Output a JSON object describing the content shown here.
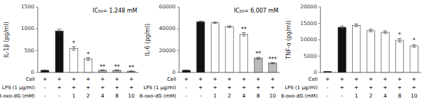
{
  "chart_data": [
    {
      "type": "bar",
      "y_label": "IL-1β (pg/ml)",
      "annotation": "IC₅₀= 1.248 mM",
      "ylim": [
        0,
        1500
      ],
      "yticks": [
        0,
        500,
        1000,
        1500
      ],
      "grid": false,
      "tick_labels": "y",
      "values": [
        50,
        950,
        550,
        310,
        50,
        50,
        30
      ],
      "errors": [
        5,
        40,
        40,
        30,
        8,
        8,
        5
      ],
      "colors": [
        "#111111",
        "#111111",
        "#ffffff",
        "#ffffff",
        "#bbbbbb",
        "#bbbbbb",
        "#bbbbbb"
      ],
      "significance": [
        null,
        null,
        "*",
        "*",
        "**",
        "**",
        "**"
      ],
      "significance_y": [
        null,
        null,
        600,
        355,
        68,
        68,
        45
      ],
      "table": [
        {
          "label": "Cell",
          "values": [
            "+",
            "+",
            "+",
            "+",
            "+",
            "+",
            "+"
          ]
        },
        {
          "label": "LPS (1 μg/ml)",
          "values": [
            "-",
            "+",
            "+",
            "+",
            "+",
            "+",
            "+"
          ]
        },
        {
          "label": "8-oxo-dG (mM)",
          "values": [
            "-",
            "-",
            "1",
            "2",
            "4",
            "8",
            "10"
          ]
        }
      ]
    },
    {
      "type": "bar",
      "y_label": "IL-6 (pg/ml)",
      "annotation": "IC₅₀= 6.007 mM",
      "ylim": [
        0,
        60000
      ],
      "yticks": [
        0,
        20000,
        40000,
        60000
      ],
      "grid": false,
      "tick_labels": "y",
      "values": [
        2000,
        46500,
        45500,
        42000,
        35000,
        13000,
        8500
      ],
      "errors": [
        200,
        600,
        600,
        700,
        1500,
        900,
        600
      ],
      "colors": [
        "#111111",
        "#111111",
        "#ffffff",
        "#ffffff",
        "#ffffff",
        "#bbbbbb",
        "#bbbbbb"
      ],
      "significance": [
        null,
        null,
        null,
        null,
        "**",
        "**",
        "***"
      ],
      "significance_y": [
        null,
        null,
        null,
        null,
        37000,
        14500,
        9500
      ],
      "table": [
        {
          "label": "Cell",
          "values": [
            "+",
            "+",
            "+",
            "+",
            "+",
            "+",
            "+"
          ]
        },
        {
          "label": "LPS (1 μg/ml)",
          "values": [
            "-",
            "+",
            "+",
            "+",
            "+",
            "+",
            "+"
          ]
        },
        {
          "label": "8-oxo-dG (mM)",
          "values": [
            "-",
            "-",
            "1",
            "2",
            "4",
            "8",
            "10"
          ]
        }
      ]
    },
    {
      "type": "bar",
      "y_label": "TNF-α (pg/ml)",
      "ylim": [
        0,
        20000
      ],
      "yticks": [
        0,
        5000,
        10000,
        15000,
        20000
      ],
      "grid": false,
      "tick_labels": "y",
      "values": [
        300,
        13800,
        14400,
        12800,
        12300,
        9800,
        8100
      ],
      "errors": [
        30,
        400,
        400,
        400,
        400,
        500,
        400
      ],
      "colors": [
        "#111111",
        "#111111",
        "#ffffff",
        "#ffffff",
        "#ffffff",
        "#ffffff",
        "#ffffff"
      ],
      "significance": [
        null,
        null,
        null,
        null,
        null,
        "*",
        "*"
      ],
      "significance_y": [
        null,
        null,
        null,
        null,
        null,
        10700,
        8900
      ],
      "table": [
        {
          "label": "Cell",
          "values": [
            "+",
            "+",
            "+",
            "+",
            "+",
            "+",
            "+"
          ]
        },
        {
          "label": "LPS (1 μg/ml)",
          "values": [
            "-",
            "+",
            "+",
            "+",
            "+",
            "+",
            "+"
          ]
        },
        {
          "label": "8-oxo-dG (mM)",
          "values": [
            "-",
            "-",
            "1",
            "2",
            "4",
            "8",
            "10"
          ]
        }
      ]
    }
  ]
}
